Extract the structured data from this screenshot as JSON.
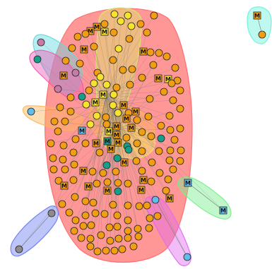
{
  "title": "",
  "node_label": "M",
  "colors": {
    "background": "#ffffff",
    "edge": "#7a7a7a",
    "node_outline": "#222222",
    "node_orange": "#f29e12",
    "node_yellow": "#f7e32d",
    "node_teal": "#179e8a",
    "node_lightblue": "#5fbde8",
    "node_pink": "#c77ba6",
    "node_grey": "#8c8c8c",
    "label_text": "#111111",
    "hull_red": "#ff6b6b",
    "hull_yellow": "#d9e86a",
    "hull_cyan": "#62d8e0",
    "hull_magenta": "#f05ab4",
    "hull_orange": "#ffb55c",
    "hull_green": "#77ee8f",
    "hull_blue": "#6f7ff2",
    "hull_violet": "#e06af0",
    "hull_aqua": "#6cf2d9",
    "hull_lightyellow": "#f2ea6a"
  },
  "groups": [
    {
      "id": "main",
      "color": "hull_red"
    },
    {
      "id": "upper-core",
      "color": "hull_yellow"
    },
    {
      "id": "upper-left-cyan",
      "color": "hull_cyan"
    },
    {
      "id": "upper-left-magenta",
      "color": "hull_magenta"
    },
    {
      "id": "left-orange",
      "color": "hull_orange"
    },
    {
      "id": "center-orange",
      "color": "hull_orange"
    },
    {
      "id": "center-yellow",
      "color": "hull_lightyellow"
    },
    {
      "id": "lower-right-green",
      "color": "hull_green"
    },
    {
      "id": "lower-left-blue",
      "color": "hull_blue"
    },
    {
      "id": "bottom-violet",
      "color": "hull_violet"
    },
    {
      "id": "top-right-aqua",
      "color": "hull_aqua"
    }
  ]
}
